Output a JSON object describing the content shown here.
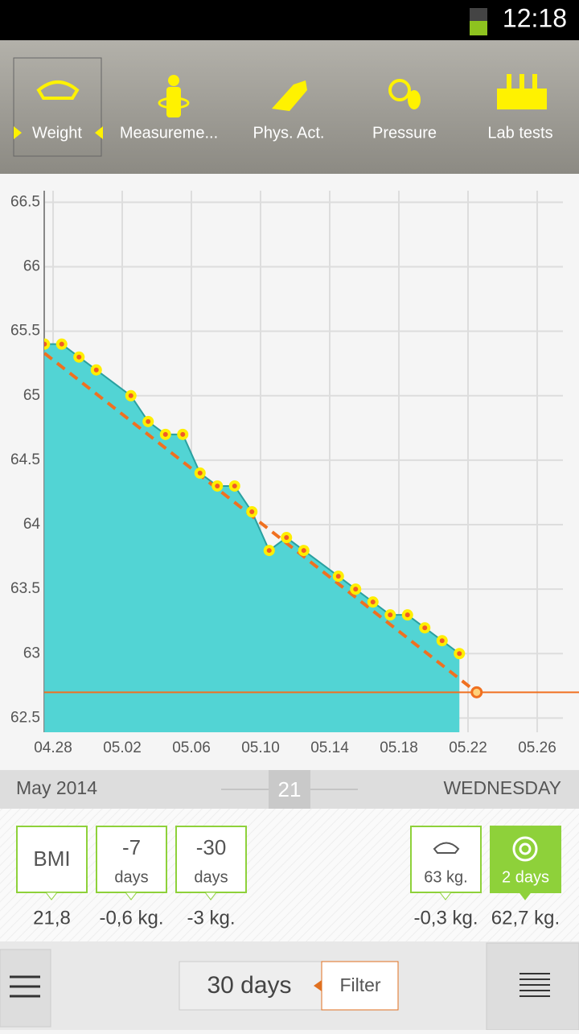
{
  "status_bar": {
    "time": "12:18"
  },
  "tabs": [
    "Weight",
    "Measureme...",
    "Phys. Act.",
    "Pressure",
    "Lab tests"
  ],
  "chart_data": {
    "type": "area",
    "x": [
      "04.27",
      "04.28",
      "04.29",
      "04.30",
      "05.02",
      "05.03",
      "05.04",
      "05.05",
      "05.06",
      "05.07",
      "05.08",
      "05.09",
      "05.10",
      "05.11",
      "05.12",
      "05.14",
      "05.15",
      "05.16",
      "05.17",
      "05.18",
      "05.19",
      "05.20",
      "05.21"
    ],
    "values": [
      65.4,
      65.4,
      65.3,
      65.2,
      65.0,
      64.8,
      64.7,
      64.7,
      64.4,
      64.3,
      64.3,
      64.1,
      63.8,
      63.9,
      63.8,
      63.6,
      63.5,
      63.4,
      63.3,
      63.3,
      63.2,
      63.1,
      63.0
    ],
    "color": "#52d4d4",
    "line_color": "#2aa0a0",
    "marker_color": "#ffee00",
    "marker_center": "#f05a28",
    "trend": {
      "x": [
        "04.27",
        "05.22"
      ],
      "values": [
        65.33,
        62.7
      ],
      "color": "#f07020"
    },
    "goal": 62.7,
    "ylim": [
      62.39,
      66.59
    ],
    "yticks": [
      62.5,
      63,
      63.5,
      64,
      64.5,
      65,
      65.5,
      66,
      66.5
    ],
    "xlim": [
      "04.27",
      "05.27"
    ],
    "xticks": [
      "04.28",
      "05.02",
      "05.06",
      "05.10",
      "05.14",
      "05.18",
      "05.22",
      "05.26"
    ],
    "grid": true
  },
  "date_bar": {
    "month": "May 2014",
    "day": "21",
    "weekday": "WEDNESDAY"
  },
  "cards": [
    {
      "top": "BMI",
      "bottom": "21,8"
    },
    {
      "top": "-7",
      "sub": "days",
      "bottom": "-0,6 kg."
    },
    {
      "top": "-30",
      "sub": "days",
      "bottom": "-3 kg."
    },
    {
      "sub": "63 kg.",
      "bottom": "-0,3 kg."
    },
    {
      "sub": "2 days",
      "bottom": "62,7 kg."
    }
  ],
  "footer": {
    "period": "30 days",
    "filter": "Filter"
  }
}
